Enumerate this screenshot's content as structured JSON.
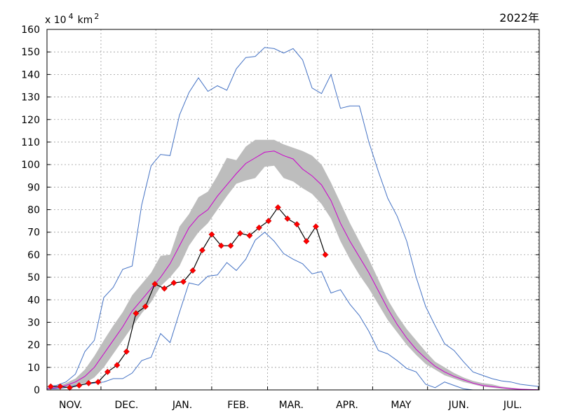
{
  "chart_data": {
    "type": "line",
    "title": "2022年",
    "ylabel": {
      "prefix": "x 10",
      "exp": "4",
      "unit": "km",
      "unit_exp": "2"
    },
    "ylim": [
      0,
      160
    ],
    "yticks": [
      0,
      10,
      20,
      30,
      40,
      50,
      60,
      70,
      80,
      90,
      100,
      110,
      120,
      130,
      140,
      150,
      160
    ],
    "xlim": [
      0,
      52
    ],
    "month_labels": [
      {
        "label": "NOV.",
        "pos": 2.5
      },
      {
        "label": "DEC.",
        "pos": 8.4
      },
      {
        "label": "JAN.",
        "pos": 14.3
      },
      {
        "label": "FEB.",
        "pos": 20.2
      },
      {
        "label": "MAR.",
        "pos": 25.8
      },
      {
        "label": "APR.",
        "pos": 31.7
      },
      {
        "label": "MAY",
        "pos": 37.4
      },
      {
        "label": "JUN.",
        "pos": 43.5
      },
      {
        "label": "JUL.",
        "pos": 49.2
      }
    ],
    "month_grid": [
      5.7,
      11.5,
      17.4,
      23.3,
      28.6,
      34.4,
      40.2,
      46.1,
      51.9
    ],
    "grid": true,
    "colors": {
      "max_min": "#4472c4",
      "mean": "#cc00cc",
      "band": "#bdbdbd",
      "current": "#ff0000",
      "current_line": "#000000"
    },
    "series": [
      {
        "role": "max",
        "x": [
          0,
          1,
          2,
          3,
          4,
          5,
          6,
          7,
          8,
          9,
          10,
          11,
          12,
          13,
          14,
          15,
          16,
          17,
          18,
          19,
          20,
          21,
          22,
          23,
          24,
          25,
          26,
          27,
          28,
          29,
          30,
          31,
          32,
          33,
          34,
          35,
          36,
          37,
          38,
          39,
          40,
          41,
          42,
          43,
          44,
          45,
          46,
          47,
          48,
          49,
          50,
          51,
          52
        ],
        "y": [
          1.5,
          2,
          3.5,
          7,
          17,
          22,
          41,
          45.5,
          53.5,
          55,
          82,
          99.5,
          104.5,
          104,
          122,
          132,
          138.5,
          132.5,
          135,
          133,
          142.5,
          147.5,
          148,
          152,
          151.5,
          149.5,
          151.5,
          146.5,
          134,
          131.5,
          140,
          125,
          126,
          126,
          110,
          97,
          85,
          77,
          66,
          50,
          37,
          28.5,
          20.5,
          17.5,
          12.5,
          8,
          6.5,
          5,
          4,
          3.5,
          2.5,
          2,
          1.5
        ]
      },
      {
        "role": "min",
        "x": [
          0,
          1,
          2,
          3,
          4,
          5,
          6,
          7,
          8,
          9,
          10,
          11,
          12,
          13,
          14,
          15,
          16,
          17,
          18,
          19,
          20,
          21,
          22,
          23,
          24,
          25,
          26,
          27,
          28,
          29,
          30,
          31,
          32,
          33,
          34,
          35,
          36,
          37,
          38,
          39,
          40,
          41,
          42,
          43,
          44,
          45,
          46,
          47,
          48,
          49,
          50,
          51,
          52
        ],
        "y": [
          0.5,
          0.5,
          1,
          2,
          2.5,
          3,
          3.5,
          5,
          5,
          7.5,
          13,
          14.5,
          25,
          21,
          34.5,
          47.5,
          46.5,
          50.5,
          51,
          56.5,
          53,
          58,
          66.5,
          70,
          66,
          60.5,
          58,
          56,
          51.5,
          52.5,
          43,
          44.5,
          38,
          33,
          26,
          17.5,
          16,
          13,
          9.5,
          8,
          2.5,
          1,
          3.5,
          2,
          0.5,
          0,
          0,
          0,
          0,
          0,
          0,
          0,
          0
        ]
      },
      {
        "role": "mean",
        "x": [
          0,
          1,
          2,
          3,
          4,
          5,
          6,
          7,
          8,
          9,
          10,
          11,
          12,
          13,
          14,
          15,
          16,
          17,
          18,
          19,
          20,
          21,
          22,
          23,
          24,
          25,
          26,
          27,
          28,
          29,
          30,
          31,
          32,
          33,
          34,
          35,
          36,
          37,
          38,
          39,
          40,
          41,
          42,
          43,
          44,
          45,
          46,
          47,
          48,
          49,
          50,
          51,
          52
        ],
        "y": [
          0.5,
          1,
          2,
          3.5,
          6,
          10,
          16,
          22,
          28,
          35,
          40,
          45,
          50,
          56,
          64,
          72,
          77,
          80,
          86,
          91,
          96,
          100.5,
          103,
          105.5,
          106,
          104,
          102.5,
          98,
          95,
          91,
          84,
          74,
          66,
          59,
          52,
          44,
          36,
          29,
          23,
          18,
          14,
          10.5,
          8,
          6,
          4.5,
          3,
          2,
          1.5,
          1,
          0.5,
          0.3,
          0.2,
          0.1
        ]
      },
      {
        "role": "band_upper",
        "x": [
          0,
          1,
          2,
          3,
          4,
          5,
          6,
          7,
          8,
          9,
          10,
          11,
          12,
          13,
          14,
          15,
          16,
          17,
          18,
          19,
          20,
          21,
          22,
          23,
          24,
          25,
          26,
          27,
          28,
          29,
          30,
          31,
          32,
          33,
          34,
          35,
          36,
          37,
          38,
          39,
          40,
          41,
          42,
          43,
          44,
          45,
          46,
          47,
          48,
          49,
          50,
          51,
          52
        ],
        "y": [
          1,
          1.5,
          3,
          5,
          9,
          15,
          22,
          28.5,
          34.5,
          42,
          47,
          52,
          59.5,
          60,
          72.5,
          78,
          85.5,
          88,
          95,
          103,
          102,
          108,
          111,
          111,
          111,
          109,
          107.5,
          106,
          104,
          100,
          92,
          83,
          74,
          66,
          58,
          49,
          40,
          33,
          27,
          22,
          17,
          12.5,
          10,
          7.5,
          5.5,
          4,
          3,
          2.5,
          1.5,
          1,
          0.5,
          0.3,
          0.2
        ]
      },
      {
        "role": "band_lower",
        "x": [
          0,
          1,
          2,
          3,
          4,
          5,
          6,
          7,
          8,
          9,
          10,
          11,
          12,
          13,
          14,
          15,
          16,
          17,
          18,
          19,
          20,
          21,
          22,
          23,
          24,
          25,
          26,
          27,
          28,
          29,
          30,
          31,
          32,
          33,
          34,
          35,
          36,
          37,
          38,
          39,
          40,
          41,
          42,
          43,
          44,
          45,
          46,
          47,
          48,
          49,
          50,
          51,
          52
        ],
        "y": [
          0.2,
          0.5,
          1,
          2,
          3,
          5.5,
          10,
          16,
          22,
          28,
          34,
          39,
          46,
          50,
          55,
          64,
          70,
          74,
          80,
          86,
          91.5,
          93,
          94,
          99,
          99.5,
          94,
          92.5,
          89.5,
          87,
          82.5,
          76,
          66,
          58,
          51,
          45,
          38,
          31,
          25.5,
          20,
          15.5,
          11.5,
          9,
          6.5,
          5,
          3.5,
          2.5,
          1.5,
          1,
          0.5,
          0.3,
          0.1,
          0,
          0
        ]
      },
      {
        "role": "current",
        "x": [
          0.4,
          1.4,
          2.4,
          3.4,
          4.4,
          5.4,
          6.4,
          7.4,
          8.4,
          9.4,
          10.4,
          11.4,
          12.4,
          13.4,
          14.4,
          15.4,
          16.4,
          17.4,
          18.4,
          19.4,
          20.4,
          21.4,
          22.4,
          23.4,
          24.4,
          25.4,
          26.4,
          27.4,
          28.4,
          29.4
        ],
        "y": [
          1.5,
          1.5,
          1,
          2,
          3,
          3.5,
          8,
          11,
          17,
          34,
          37,
          47,
          45,
          47.5,
          48,
          53,
          62,
          69,
          64,
          64,
          69.5,
          68.5,
          72,
          75,
          81,
          76,
          73.5,
          66,
          72.5,
          60
        ]
      }
    ]
  }
}
